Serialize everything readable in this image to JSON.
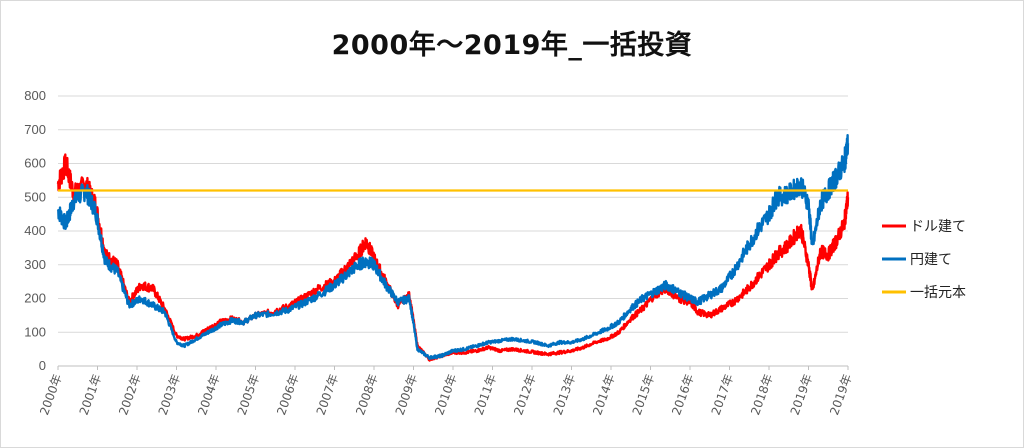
{
  "chart_data": {
    "type": "line",
    "title": "2000年～2019年_一括投資",
    "xlabel": "",
    "ylabel": "",
    "ylim": [
      0,
      800
    ],
    "yticks": [
      0,
      100,
      200,
      300,
      400,
      500,
      600,
      700,
      800
    ],
    "xticks": [
      "2000年",
      "2001年",
      "2002年",
      "2003年",
      "2004年",
      "2005年",
      "2006年",
      "2007年",
      "2008年",
      "2009年",
      "2010年",
      "2011年",
      "2012年",
      "2013年",
      "2014年",
      "2015年",
      "2016年",
      "2017年",
      "2018年",
      "2019年",
      "2019年"
    ],
    "grid": true,
    "legend_position": "right",
    "x_unit_note": "",
    "series": [
      {
        "name": "ドル建て",
        "color": "#ff0000",
        "x": [
          2000.0,
          2000.2,
          2000.4,
          2000.7,
          2000.95,
          2001.2,
          2001.5,
          2001.8,
          2002.1,
          2002.4,
          2002.7,
          2003.0,
          2003.2,
          2003.5,
          2003.8,
          2004.1,
          2004.4,
          2004.7,
          2005.0,
          2005.4,
          2005.8,
          2006.2,
          2006.6,
          2007.0,
          2007.3,
          2007.6,
          2007.8,
          2008.0,
          2008.3,
          2008.6,
          2008.9,
          2009.1,
          2009.4,
          2009.7,
          2010.0,
          2010.3,
          2010.6,
          2010.9,
          2011.2,
          2011.5,
          2011.8,
          2012.1,
          2012.4,
          2012.7,
          2013.0,
          2013.3,
          2013.6,
          2013.9,
          2014.2,
          2014.5,
          2014.8,
          2015.1,
          2015.4,
          2015.7,
          2016.0,
          2016.2,
          2016.5,
          2016.8,
          2017.1,
          2017.4,
          2017.7,
          2018.0,
          2018.2,
          2018.5,
          2018.8,
          2019.0,
          2019.1,
          2019.3,
          2019.5,
          2019.7,
          2019.9,
          2020.0
        ],
        "values": [
          540,
          600,
          510,
          540,
          480,
          330,
          300,
          190,
          240,
          230,
          170,
          90,
          80,
          90,
          110,
          130,
          140,
          130,
          150,
          160,
          175,
          200,
          230,
          250,
          290,
          330,
          370,
          320,
          250,
          180,
          210,
          60,
          20,
          30,
          40,
          40,
          45,
          55,
          45,
          50,
          45,
          40,
          35,
          40,
          45,
          55,
          70,
          80,
          100,
          140,
          170,
          210,
          230,
          200,
          190,
          160,
          150,
          170,
          190,
          220,
          260,
          300,
          330,
          360,
          410,
          300,
          220,
          340,
          330,
          370,
          420,
          500
        ]
      },
      {
        "name": "円建て",
        "color": "#0070c0",
        "x": [
          2000.0,
          2000.2,
          2000.4,
          2000.7,
          2000.95,
          2001.2,
          2001.5,
          2001.8,
          2002.1,
          2002.4,
          2002.7,
          2003.0,
          2003.2,
          2003.5,
          2003.8,
          2004.1,
          2004.4,
          2004.7,
          2005.0,
          2005.4,
          2005.8,
          2006.2,
          2006.6,
          2007.0,
          2007.3,
          2007.6,
          2007.8,
          2008.0,
          2008.3,
          2008.6,
          2008.9,
          2009.1,
          2009.4,
          2009.7,
          2010.0,
          2010.3,
          2010.6,
          2010.9,
          2011.2,
          2011.5,
          2011.8,
          2012.1,
          2012.4,
          2012.7,
          2013.0,
          2013.3,
          2013.6,
          2013.9,
          2014.2,
          2014.5,
          2014.8,
          2015.1,
          2015.4,
          2015.7,
          2016.0,
          2016.2,
          2016.5,
          2016.8,
          2017.1,
          2017.4,
          2017.7,
          2018.0,
          2018.2,
          2018.5,
          2018.8,
          2019.0,
          2019.1,
          2019.3,
          2019.5,
          2019.7,
          2019.9,
          2020.0
        ],
        "values": [
          460,
          420,
          490,
          520,
          460,
          310,
          280,
          180,
          200,
          180,
          160,
          70,
          60,
          80,
          100,
          120,
          135,
          130,
          150,
          155,
          165,
          185,
          210,
          240,
          270,
          300,
          310,
          300,
          240,
          190,
          200,
          50,
          25,
          30,
          45,
          50,
          60,
          70,
          75,
          80,
          75,
          70,
          60,
          70,
          70,
          80,
          95,
          110,
          130,
          170,
          200,
          220,
          240,
          220,
          200,
          190,
          210,
          230,
          280,
          340,
          400,
          450,
          500,
          510,
          540,
          480,
          350,
          480,
          520,
          560,
          600,
          660
        ]
      },
      {
        "name": "一括元本",
        "color": "#ffc000",
        "x": [
          2000.0,
          2020.0
        ],
        "values": [
          520,
          520
        ]
      }
    ]
  }
}
